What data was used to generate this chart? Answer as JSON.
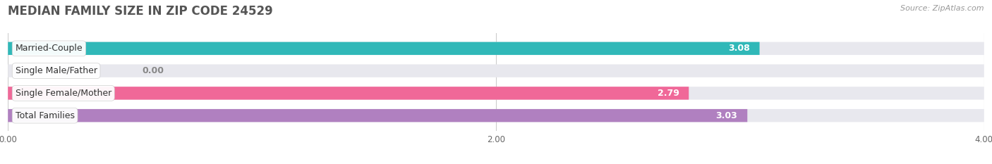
{
  "title": "MEDIAN FAMILY SIZE IN ZIP CODE 24529",
  "source": "Source: ZipAtlas.com",
  "categories": [
    "Married-Couple",
    "Single Male/Father",
    "Single Female/Mother",
    "Total Families"
  ],
  "values": [
    3.08,
    0.0,
    2.79,
    3.03
  ],
  "bar_colors": [
    "#30b8b8",
    "#a8b8e8",
    "#f06898",
    "#b080c0"
  ],
  "xlim": [
    0,
    4.0
  ],
  "xticks": [
    0.0,
    2.0,
    4.0
  ],
  "xtick_labels": [
    "0.00",
    "2.00",
    "4.00"
  ],
  "bar_height": 0.58,
  "background_color": "#ffffff",
  "bar_bg_color": "#e8e8ee",
  "title_fontsize": 12,
  "source_fontsize": 8,
  "label_fontsize": 9,
  "value_fontsize": 9
}
